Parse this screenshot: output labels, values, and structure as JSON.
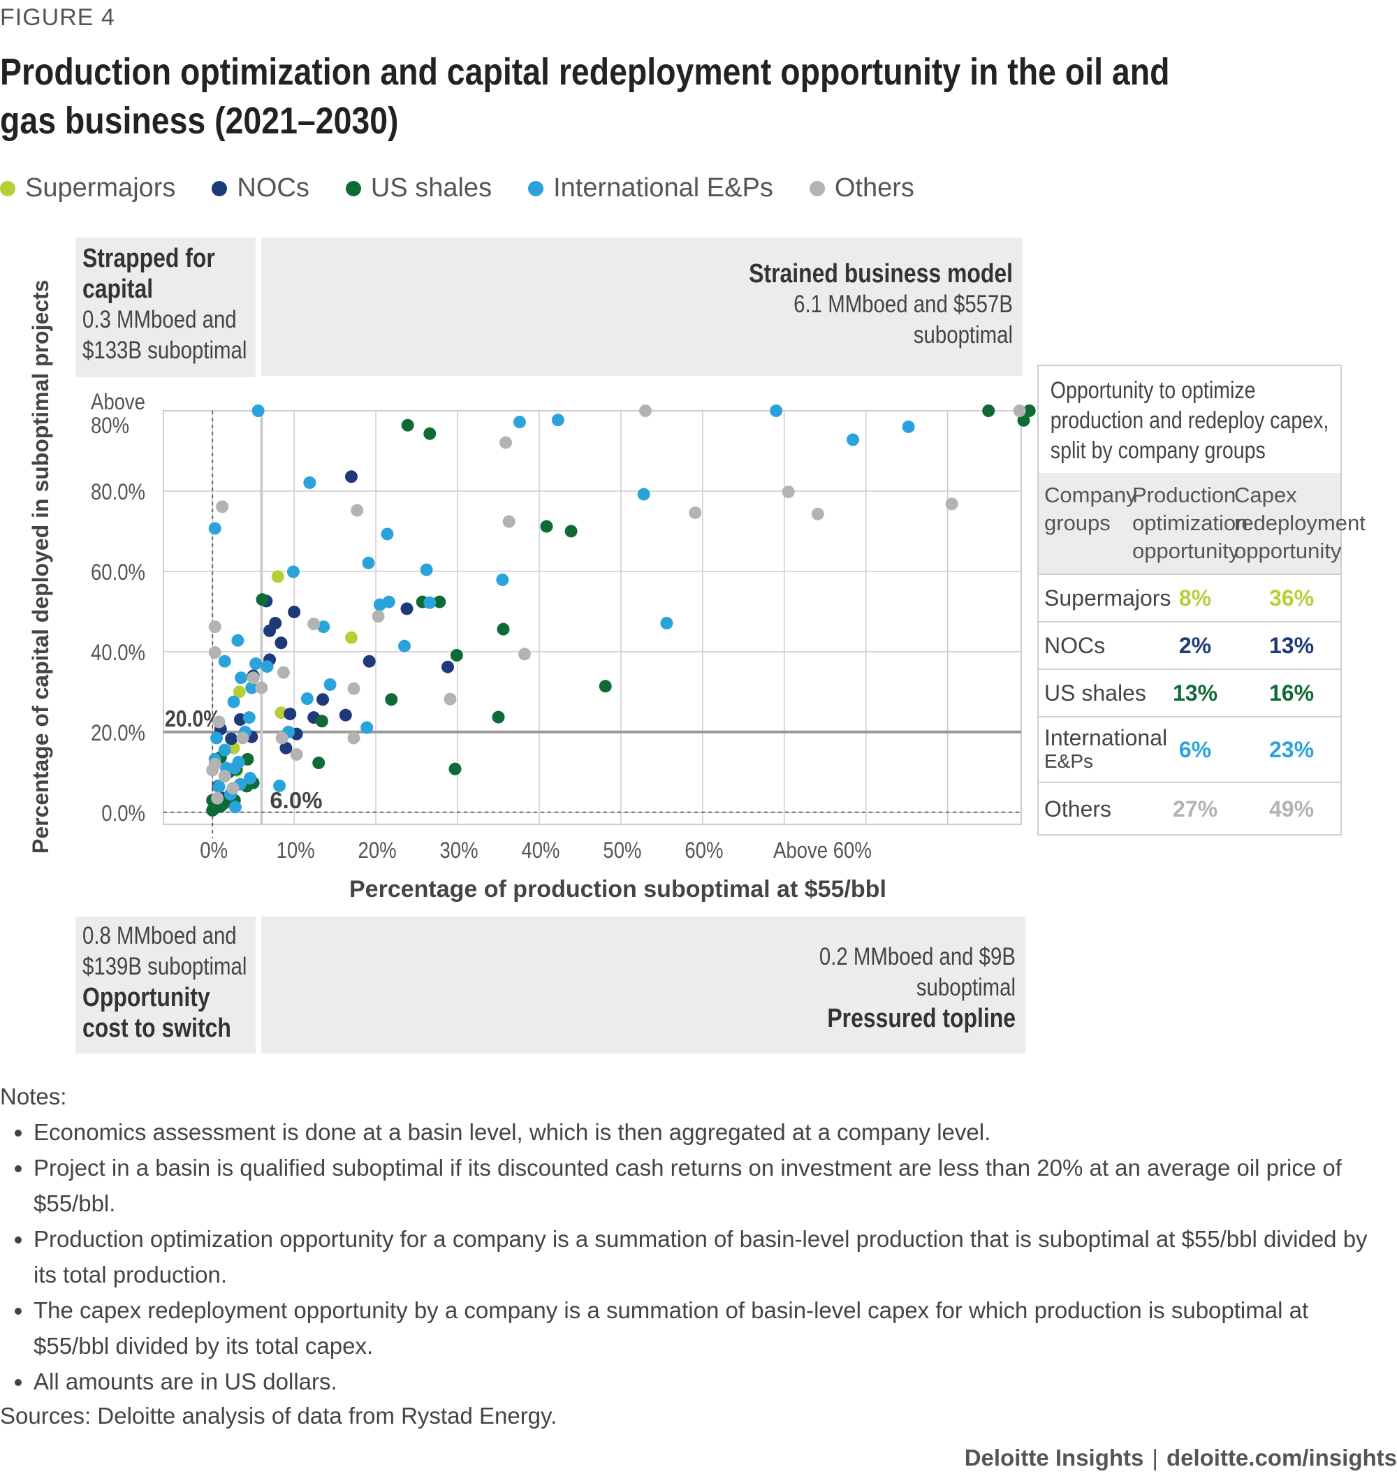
{
  "figure_label": "FIGURE 4",
  "title": "Production optimization and capital redeployment opportunity in the oil and gas business (2021–2030)",
  "colors": {
    "supermajors": "#b5cf37",
    "nocs": "#1f3a7a",
    "us_shales": "#0f6b35",
    "intl_eps": "#2aa3dc",
    "others": "#b3b3b3",
    "quadrant_bg": "#ececec",
    "grid": "#cccccc"
  },
  "legend": [
    {
      "label": "Supermajors",
      "color_key": "supermajors"
    },
    {
      "label": "NOCs",
      "color_key": "nocs"
    },
    {
      "label": "US shales",
      "color_key": "us_shales"
    },
    {
      "label": "International E&Ps",
      "color_key": "intl_eps"
    },
    {
      "label": "Others",
      "color_key": "others"
    }
  ],
  "quadrants": {
    "top_left": {
      "title": "Strapped for capital",
      "desc_line1": "0.3 MMboed and",
      "desc_line2": "$133B suboptimal"
    },
    "top_right": {
      "title": "Strained business model",
      "desc_line1": "6.1 MMboed and $557B",
      "desc_line2": "suboptimal"
    },
    "bottom_left": {
      "desc_line1": "0.8 MMboed and",
      "desc_line2": "$139B suboptimal",
      "title_line1": "Opportunity",
      "title_line2": "cost to switch"
    },
    "bottom_right": {
      "desc_line1": "0.2 MMboed and $9B",
      "desc_line2": "suboptimal",
      "title": "Pressured topline"
    }
  },
  "side_table": {
    "heading": [
      "Opportunity to optimize",
      "production and redeploy capex,",
      "split by company groups"
    ],
    "columns": [
      [
        "Company",
        "groups"
      ],
      [
        "Production",
        "optimization",
        "opportunity"
      ],
      [
        "Capex",
        "redeployment",
        "opportunity"
      ]
    ],
    "rows": [
      {
        "group": "Supermajors",
        "production": "8%",
        "capex": "36%",
        "color_key": "supermajors"
      },
      {
        "group": "NOCs",
        "production": "2%",
        "capex": "13%",
        "color_key": "nocs"
      },
      {
        "group": "US shales",
        "production": "13%",
        "capex": "16%",
        "color_key": "us_shales"
      },
      {
        "group_line1": "International",
        "group_line2": "E&Ps",
        "production": "6%",
        "capex": "23%",
        "color_key": "intl_eps"
      },
      {
        "group": "Others",
        "production": "27%",
        "capex": "49%",
        "color_key": "others"
      }
    ]
  },
  "chart_data": {
    "type": "scatter",
    "xlabel": "Percentage of production suboptimal at $55/bbl",
    "ylabel": "Percentage of capital deployed in suboptimal projects",
    "x_ticks": [
      "0%",
      "10%",
      "20%",
      "30%",
      "40%",
      "50%",
      "60%",
      "Above 60%"
    ],
    "y_ticks": [
      "0.0%",
      "20.0%",
      "40.0%",
      "60.0%",
      "80.0%",
      "Above 80%"
    ],
    "xlim": [
      -6,
      99
    ],
    "ylim": [
      -3,
      100
    ],
    "threshold_labels": {
      "y": "20.0%",
      "x": "6.0%"
    },
    "thresholds": {
      "x": 6,
      "y": 20
    },
    "series": [
      {
        "name": "Supermajors",
        "color_key": "supermajors",
        "points": [
          [
            8,
            58.7
          ],
          [
            17,
            43.5
          ],
          [
            3.3,
            30
          ],
          [
            8.4,
            24.8
          ],
          [
            2.6,
            16
          ],
          [
            3,
            10.4
          ]
        ]
      },
      {
        "name": "NOCs",
        "color_key": "nocs",
        "points": [
          [
            17,
            83.6
          ],
          [
            6.6,
            52.6
          ],
          [
            10,
            49.9
          ],
          [
            23.8,
            50.7
          ],
          [
            7.7,
            47.1
          ],
          [
            7,
            45.2
          ],
          [
            8.4,
            42.2
          ],
          [
            19.2,
            37.6
          ],
          [
            7,
            38
          ],
          [
            28.8,
            36.2
          ],
          [
            5,
            34
          ],
          [
            13.5,
            28.1
          ],
          [
            9.5,
            24.5
          ],
          [
            12.4,
            23.6
          ],
          [
            16.3,
            24.2
          ],
          [
            3.4,
            23.1
          ],
          [
            1,
            20.7
          ],
          [
            4.8,
            18.8
          ],
          [
            2.3,
            18.3
          ],
          [
            10.3,
            19.5
          ],
          [
            9,
            16
          ],
          [
            2,
            10
          ],
          [
            0.7,
            6.5
          ],
          [
            1.3,
            3.5
          ],
          [
            0.3,
            2
          ]
        ]
      },
      {
        "name": "US shales",
        "color_key": "us_shales",
        "points": [
          [
            95,
            100
          ],
          [
            100,
            100
          ],
          [
            99.3,
            97.6
          ],
          [
            23.9,
            96.4
          ],
          [
            26.6,
            94.3
          ],
          [
            40.9,
            71.2
          ],
          [
            43.9,
            70
          ],
          [
            6.1,
            53
          ],
          [
            25.7,
            52.4
          ],
          [
            27.8,
            52.4
          ],
          [
            35.6,
            45.6
          ],
          [
            29.9,
            39.1
          ],
          [
            48.1,
            31.4
          ],
          [
            21.9,
            28.1
          ],
          [
            35,
            23.7
          ],
          [
            13.4,
            22.7
          ],
          [
            1,
            13.7
          ],
          [
            4.3,
            13.2
          ],
          [
            13,
            12.3
          ],
          [
            29.7,
            10.8
          ],
          [
            2.9,
            10.7
          ],
          [
            1.8,
            10
          ],
          [
            4.2,
            6.5
          ],
          [
            5,
            7.3
          ],
          [
            2.7,
            3
          ],
          [
            1.4,
            2.2
          ],
          [
            0,
            3
          ],
          [
            0.3,
            1
          ],
          [
            1,
            1.5
          ],
          [
            0,
            0.5
          ]
        ]
      },
      {
        "name": "International E&Ps",
        "color_key": "intl_eps",
        "points": [
          [
            5.6,
            100
          ],
          [
            69,
            100
          ],
          [
            37.6,
            97.2
          ],
          [
            42.3,
            97.7
          ],
          [
            85.2,
            96
          ],
          [
            78.4,
            92.8
          ],
          [
            52.8,
            79.2
          ],
          [
            11.9,
            82.1
          ],
          [
            0.3,
            70.7
          ],
          [
            21.4,
            69.3
          ],
          [
            19.1,
            62.1
          ],
          [
            9.9,
            59.9
          ],
          [
            26.2,
            60.4
          ],
          [
            35.5,
            57.9
          ],
          [
            26.6,
            52.2
          ],
          [
            20.5,
            51.7
          ],
          [
            21.6,
            52.4
          ],
          [
            13.6,
            46.2
          ],
          [
            55.6,
            47.1
          ],
          [
            3.1,
            42.8
          ],
          [
            23.5,
            41.4
          ],
          [
            1.5,
            37.6
          ],
          [
            5.3,
            37
          ],
          [
            6.7,
            36.3
          ],
          [
            14.4,
            31.8
          ],
          [
            3.5,
            33.5
          ],
          [
            4.8,
            31
          ],
          [
            11.6,
            28.3
          ],
          [
            2.6,
            27.5
          ],
          [
            4.5,
            23.6
          ],
          [
            18.9,
            21.1
          ],
          [
            0.5,
            18.5
          ],
          [
            4,
            20
          ],
          [
            9.3,
            20
          ],
          [
            0.3,
            13.2
          ],
          [
            1.5,
            15.5
          ],
          [
            3.2,
            12.5
          ],
          [
            1.7,
            11
          ],
          [
            2.7,
            11
          ],
          [
            4.6,
            8.5
          ],
          [
            8.2,
            6.6
          ],
          [
            0.8,
            6.4
          ],
          [
            3.4,
            7
          ],
          [
            2.2,
            4.5
          ],
          [
            2.8,
            1.3
          ]
        ]
      },
      {
        "name": "Others",
        "color_key": "others",
        "points": [
          [
            53,
            100
          ],
          [
            98.8,
            100
          ],
          [
            35.9,
            92.1
          ],
          [
            70.5,
            79.8
          ],
          [
            74.1,
            74.3
          ],
          [
            90.5,
            76.8
          ],
          [
            1.2,
            76.1
          ],
          [
            17.7,
            75.2
          ],
          [
            59.1,
            74.6
          ],
          [
            36.3,
            72.4
          ],
          [
            20.3,
            48.8
          ],
          [
            12.4,
            46.9
          ],
          [
            0.3,
            46.2
          ],
          [
            0.3,
            39.8
          ],
          [
            38.2,
            39.4
          ],
          [
            8.7,
            34.8
          ],
          [
            5,
            33.5
          ],
          [
            6,
            31
          ],
          [
            17.3,
            30.8
          ],
          [
            29.1,
            28.2
          ],
          [
            0.8,
            22.5
          ],
          [
            8.5,
            18.5
          ],
          [
            3.7,
            18.5
          ],
          [
            17.3,
            18.5
          ],
          [
            10.3,
            14.4
          ],
          [
            0.3,
            12
          ],
          [
            0,
            10.5
          ],
          [
            1.5,
            9
          ],
          [
            2.5,
            6
          ],
          [
            0.6,
            3.5
          ]
        ]
      }
    ]
  },
  "notes": {
    "heading": "Notes:",
    "items": [
      "Economics assessment is done at a basin level, which is then aggregated at a company level.",
      "Project in a basin is qualified suboptimal if its discounted cash returns on investment are less than 20% at an average oil price of $55/bbl.",
      "Production optimization opportunity for a company is a summation of basin-level production that is suboptimal at $55/bbl divided by its total production.",
      "The capex redeployment opportunity by a company is a summation of basin-level capex for which production is suboptimal at $55/bbl divided by its total capex.",
      "All amounts are in US dollars."
    ]
  },
  "sources": "Sources: Deloitte analysis of data from Rystad Energy.",
  "footer": {
    "brand": "Deloitte Insights",
    "separator": "|",
    "url": "deloitte.com/insights"
  }
}
